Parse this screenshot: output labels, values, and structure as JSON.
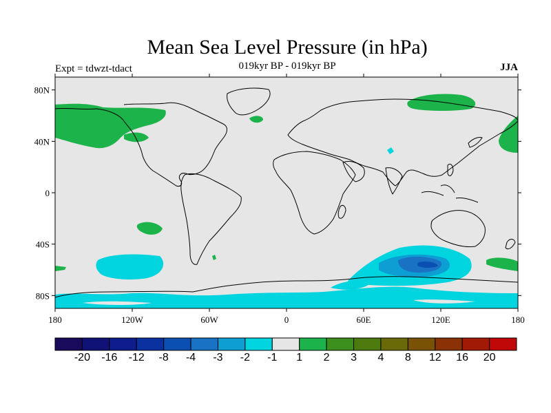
{
  "title": "Mean Sea Level Pressure (in hPa)",
  "subtitle": "019kyr BP - 019kyr BP",
  "left_label": "Expt = tdwzt-tdact",
  "right_label": "JJA",
  "chart_data": {
    "type": "map",
    "projection": "cylindrical-equidistant",
    "lon_range": [
      -180,
      180
    ],
    "lat_range": [
      -90,
      90
    ],
    "x_ticks": [
      {
        "value": -180,
        "label": "180"
      },
      {
        "value": -120,
        "label": "120W"
      },
      {
        "value": -60,
        "label": "60W"
      },
      {
        "value": 0,
        "label": "0"
      },
      {
        "value": 60,
        "label": "60E"
      },
      {
        "value": 120,
        "label": "120E"
      },
      {
        "value": 180,
        "label": "180"
      }
    ],
    "y_ticks": [
      {
        "value": 80,
        "label": "80N"
      },
      {
        "value": 40,
        "label": "40N"
      },
      {
        "value": 0,
        "label": "0"
      },
      {
        "value": -40,
        "label": "40S"
      },
      {
        "value": -80,
        "label": "80S"
      }
    ],
    "background_color": "#e6e6e6",
    "colorbar": {
      "colors": [
        "#1a0a5c",
        "#111275",
        "#0f1d8c",
        "#0b30a0",
        "#0b4fb2",
        "#1a72c4",
        "#0d9fd4",
        "#00d4df",
        "#e6e6e6",
        "#1bb34a",
        "#3a8f1d",
        "#4c7a0e",
        "#6a6a08",
        "#7a5205",
        "#8a3205",
        "#a01a05",
        "#c00808"
      ],
      "labels": [
        "-20",
        "-16",
        "-12",
        "-8",
        "-4",
        "-3",
        "-2",
        "-1",
        "1",
        "2",
        "3",
        "4",
        "8",
        "12",
        "16",
        "20"
      ]
    },
    "anomaly_regions": [
      {
        "level": "1 to 2",
        "color": "#1bb34a",
        "region": "North Pacific / Alaska high-latitude",
        "lon": [
          -180,
          -100
        ],
        "lat": [
          40,
          70
        ]
      },
      {
        "level": "1 to 2",
        "color": "#1bb34a",
        "region": "Arctic north of Siberia",
        "lon": [
          85,
          140
        ],
        "lat": [
          67,
          77
        ]
      },
      {
        "level": "1 to 2",
        "color": "#1bb34a",
        "region": "Western North Pacific",
        "lon": [
          160,
          180
        ],
        "lat": [
          35,
          60
        ]
      },
      {
        "level": "1 to 2",
        "color": "#1bb34a",
        "region": "Southeast Pacific",
        "lon": [
          -115,
          -100
        ],
        "lat": [
          -34,
          -26
        ]
      },
      {
        "level": "1 to 2",
        "color": "#1bb34a",
        "region": "Southwest Pacific near New Zealand",
        "lon": [
          158,
          180
        ],
        "lat": [
          -57,
          -50
        ]
      },
      {
        "level": "-1 to -2",
        "color": "#00d4df",
        "region": "South Pacific mid-latitudes",
        "lon": [
          -148,
          -96
        ],
        "lat": [
          -67,
          -47
        ]
      },
      {
        "level": "-1 to -2",
        "color": "#00d4df",
        "region": "Southern Indian Ocean",
        "lon": [
          20,
          150
        ],
        "lat": [
          -72,
          -38
        ]
      },
      {
        "level": "-2 to -3",
        "color": "#0d9fd4",
        "region": "Southern Indian Ocean core",
        "lon": [
          80,
          135
        ],
        "lat": [
          -60,
          -48
        ]
      },
      {
        "level": "-3 to -4",
        "color": "#1a72c4",
        "region": "Southern Indian Ocean center",
        "lon": [
          105,
          118
        ],
        "lat": [
          -57,
          -51
        ]
      },
      {
        "level": "-1 to -2",
        "color": "#00d4df",
        "region": "Antarctic coastal band",
        "lon": [
          -180,
          180
        ],
        "lat": [
          -90,
          -80
        ]
      }
    ]
  }
}
